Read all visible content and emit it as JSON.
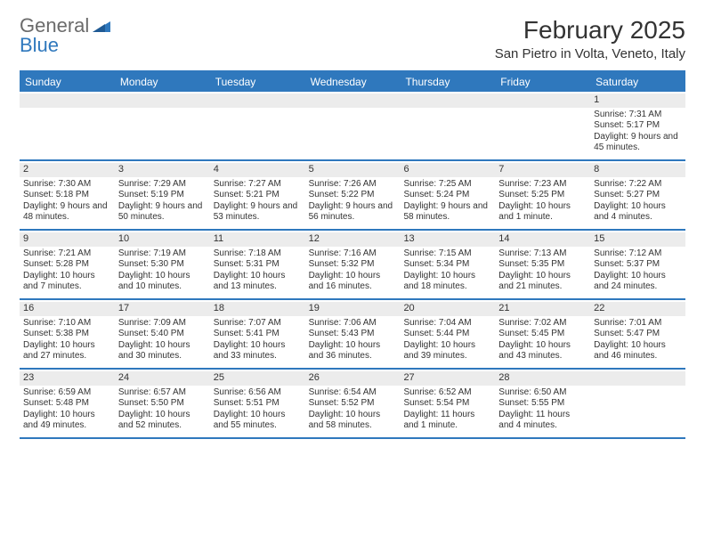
{
  "logo": {
    "word1": "General",
    "word2": "Blue"
  },
  "title": "February 2025",
  "location": "San Pietro in Volta, Veneto, Italy",
  "colors": {
    "accent": "#2f78bd",
    "header_text": "#ffffff",
    "daynum_bg": "#ececec",
    "body_text": "#333333",
    "logo_gray": "#6b6b6b"
  },
  "typography": {
    "title_fontsize": 28,
    "location_fontsize": 15,
    "dayheader_fontsize": 12,
    "cell_fontsize": 10
  },
  "day_headers": [
    "Sunday",
    "Monday",
    "Tuesday",
    "Wednesday",
    "Thursday",
    "Friday",
    "Saturday"
  ],
  "weeks": [
    [
      {
        "day": null
      },
      {
        "day": null
      },
      {
        "day": null
      },
      {
        "day": null
      },
      {
        "day": null
      },
      {
        "day": null
      },
      {
        "day": "1",
        "sunrise": "Sunrise: 7:31 AM",
        "sunset": "Sunset: 5:17 PM",
        "daylight": "Daylight: 9 hours and 45 minutes."
      }
    ],
    [
      {
        "day": "2",
        "sunrise": "Sunrise: 7:30 AM",
        "sunset": "Sunset: 5:18 PM",
        "daylight": "Daylight: 9 hours and 48 minutes."
      },
      {
        "day": "3",
        "sunrise": "Sunrise: 7:29 AM",
        "sunset": "Sunset: 5:19 PM",
        "daylight": "Daylight: 9 hours and 50 minutes."
      },
      {
        "day": "4",
        "sunrise": "Sunrise: 7:27 AM",
        "sunset": "Sunset: 5:21 PM",
        "daylight": "Daylight: 9 hours and 53 minutes."
      },
      {
        "day": "5",
        "sunrise": "Sunrise: 7:26 AM",
        "sunset": "Sunset: 5:22 PM",
        "daylight": "Daylight: 9 hours and 56 minutes."
      },
      {
        "day": "6",
        "sunrise": "Sunrise: 7:25 AM",
        "sunset": "Sunset: 5:24 PM",
        "daylight": "Daylight: 9 hours and 58 minutes."
      },
      {
        "day": "7",
        "sunrise": "Sunrise: 7:23 AM",
        "sunset": "Sunset: 5:25 PM",
        "daylight": "Daylight: 10 hours and 1 minute."
      },
      {
        "day": "8",
        "sunrise": "Sunrise: 7:22 AM",
        "sunset": "Sunset: 5:27 PM",
        "daylight": "Daylight: 10 hours and 4 minutes."
      }
    ],
    [
      {
        "day": "9",
        "sunrise": "Sunrise: 7:21 AM",
        "sunset": "Sunset: 5:28 PM",
        "daylight": "Daylight: 10 hours and 7 minutes."
      },
      {
        "day": "10",
        "sunrise": "Sunrise: 7:19 AM",
        "sunset": "Sunset: 5:30 PM",
        "daylight": "Daylight: 10 hours and 10 minutes."
      },
      {
        "day": "11",
        "sunrise": "Sunrise: 7:18 AM",
        "sunset": "Sunset: 5:31 PM",
        "daylight": "Daylight: 10 hours and 13 minutes."
      },
      {
        "day": "12",
        "sunrise": "Sunrise: 7:16 AM",
        "sunset": "Sunset: 5:32 PM",
        "daylight": "Daylight: 10 hours and 16 minutes."
      },
      {
        "day": "13",
        "sunrise": "Sunrise: 7:15 AM",
        "sunset": "Sunset: 5:34 PM",
        "daylight": "Daylight: 10 hours and 18 minutes."
      },
      {
        "day": "14",
        "sunrise": "Sunrise: 7:13 AM",
        "sunset": "Sunset: 5:35 PM",
        "daylight": "Daylight: 10 hours and 21 minutes."
      },
      {
        "day": "15",
        "sunrise": "Sunrise: 7:12 AM",
        "sunset": "Sunset: 5:37 PM",
        "daylight": "Daylight: 10 hours and 24 minutes."
      }
    ],
    [
      {
        "day": "16",
        "sunrise": "Sunrise: 7:10 AM",
        "sunset": "Sunset: 5:38 PM",
        "daylight": "Daylight: 10 hours and 27 minutes."
      },
      {
        "day": "17",
        "sunrise": "Sunrise: 7:09 AM",
        "sunset": "Sunset: 5:40 PM",
        "daylight": "Daylight: 10 hours and 30 minutes."
      },
      {
        "day": "18",
        "sunrise": "Sunrise: 7:07 AM",
        "sunset": "Sunset: 5:41 PM",
        "daylight": "Daylight: 10 hours and 33 minutes."
      },
      {
        "day": "19",
        "sunrise": "Sunrise: 7:06 AM",
        "sunset": "Sunset: 5:43 PM",
        "daylight": "Daylight: 10 hours and 36 minutes."
      },
      {
        "day": "20",
        "sunrise": "Sunrise: 7:04 AM",
        "sunset": "Sunset: 5:44 PM",
        "daylight": "Daylight: 10 hours and 39 minutes."
      },
      {
        "day": "21",
        "sunrise": "Sunrise: 7:02 AM",
        "sunset": "Sunset: 5:45 PM",
        "daylight": "Daylight: 10 hours and 43 minutes."
      },
      {
        "day": "22",
        "sunrise": "Sunrise: 7:01 AM",
        "sunset": "Sunset: 5:47 PM",
        "daylight": "Daylight: 10 hours and 46 minutes."
      }
    ],
    [
      {
        "day": "23",
        "sunrise": "Sunrise: 6:59 AM",
        "sunset": "Sunset: 5:48 PM",
        "daylight": "Daylight: 10 hours and 49 minutes."
      },
      {
        "day": "24",
        "sunrise": "Sunrise: 6:57 AM",
        "sunset": "Sunset: 5:50 PM",
        "daylight": "Daylight: 10 hours and 52 minutes."
      },
      {
        "day": "25",
        "sunrise": "Sunrise: 6:56 AM",
        "sunset": "Sunset: 5:51 PM",
        "daylight": "Daylight: 10 hours and 55 minutes."
      },
      {
        "day": "26",
        "sunrise": "Sunrise: 6:54 AM",
        "sunset": "Sunset: 5:52 PM",
        "daylight": "Daylight: 10 hours and 58 minutes."
      },
      {
        "day": "27",
        "sunrise": "Sunrise: 6:52 AM",
        "sunset": "Sunset: 5:54 PM",
        "daylight": "Daylight: 11 hours and 1 minute."
      },
      {
        "day": "28",
        "sunrise": "Sunrise: 6:50 AM",
        "sunset": "Sunset: 5:55 PM",
        "daylight": "Daylight: 11 hours and 4 minutes."
      },
      {
        "day": null
      }
    ]
  ]
}
